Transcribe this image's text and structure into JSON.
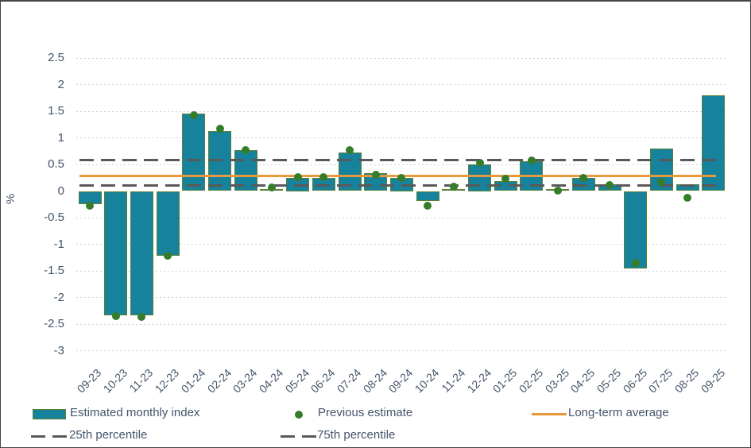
{
  "chart_data": {
    "type": "bar",
    "title": "",
    "xlabel": "",
    "ylabel": "%",
    "ylim": [
      -3,
      2.5
    ],
    "ytick_step": 0.5,
    "grid": "dotted-horizontal",
    "legend_position": "bottom",
    "categories": [
      "09-23",
      "10-23",
      "11-23",
      "12-23",
      "01-24",
      "02-24",
      "03-24",
      "04-24",
      "05-24",
      "06-24",
      "07-24",
      "08-24",
      "09-24",
      "10-24",
      "11-24",
      "12-24",
      "01-25",
      "02-25",
      "03-25",
      "04-25",
      "05-25",
      "06-25",
      "07-25",
      "08-25",
      "09-25"
    ],
    "series": [
      {
        "name": "Estimated monthly index",
        "type": "bar",
        "values": [
          -0.25,
          -2.33,
          -2.33,
          -1.22,
          1.45,
          1.13,
          0.77,
          0.03,
          0.25,
          0.24,
          0.72,
          0.34,
          0.25,
          -0.19,
          0.04,
          0.5,
          0.18,
          0.56,
          0.04,
          0.24,
          0.13,
          -1.45,
          0.8,
          0.13,
          1.8
        ]
      },
      {
        "name": "Previous estimate",
        "type": "scatter",
        "values": [
          -0.27,
          -2.35,
          -2.36,
          -1.21,
          1.43,
          1.17,
          0.77,
          0.06,
          0.26,
          0.26,
          0.77,
          0.3,
          0.25,
          -0.27,
          0.08,
          0.53,
          0.23,
          0.57,
          0.01,
          0.25,
          0.11,
          -1.35,
          0.17,
          -0.13,
          null
        ]
      },
      {
        "name": "Long-term average",
        "type": "line",
        "value": 0.28
      },
      {
        "name": "25th percentile",
        "type": "dashed-line",
        "value": 0.1
      },
      {
        "name": "75th percentile",
        "type": "dashed-line",
        "value": 0.58
      }
    ]
  },
  "y_axis": {
    "title": "%",
    "tick_labels": [
      "2.5",
      "2",
      "1.5",
      "1",
      "0.5",
      "0",
      "-0.5",
      "-1",
      "-1.5",
      "-2",
      "-2.5",
      "-3"
    ]
  },
  "colors": {
    "bar_fill": "#16829c",
    "bar_border": "#5a8033",
    "dot": "#367d2b",
    "long_term_average": "#e9993d",
    "percentile": "#595959",
    "axis_text": "#44546a",
    "gridline": "#d2d2d2"
  },
  "legend": {
    "items": [
      {
        "label": "Estimated monthly index",
        "swatch": "bar"
      },
      {
        "label": "Previous estimate",
        "swatch": "dot"
      },
      {
        "label": "Long-term average",
        "swatch": "line"
      },
      {
        "label": "25th percentile",
        "swatch": "dash"
      },
      {
        "label": "75th percentile",
        "swatch": "dash"
      }
    ]
  }
}
